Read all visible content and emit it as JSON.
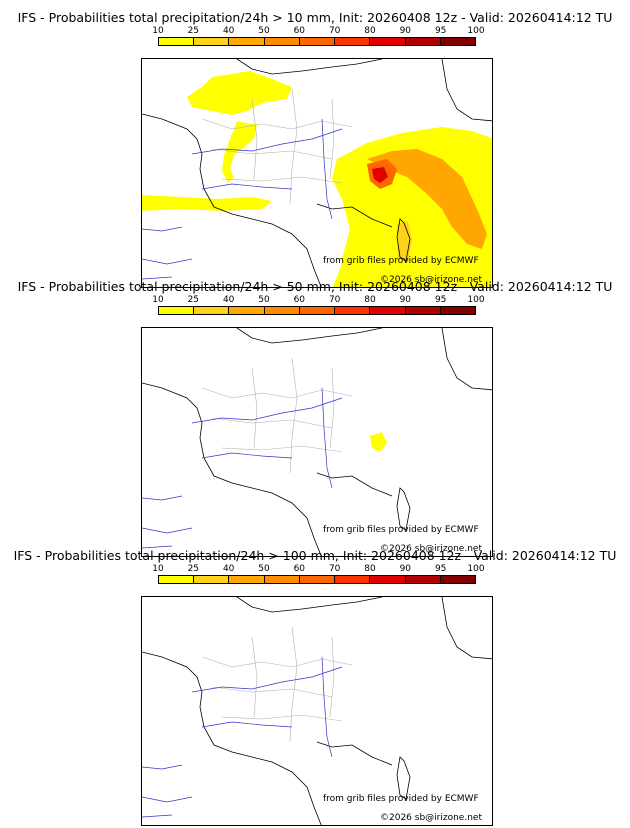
{
  "panels": [
    {
      "title": "IFS - Probabilities total precipitation/24h > 10 mm, Init: 20260408 12z - Valid: 20260414:12 TU",
      "threshold_mm": 10,
      "coverage": "wide"
    },
    {
      "title": "IFS - Probabilities total precipitation/24h > 50 mm, Init: 20260408 12z - Valid: 20260414:12 TU",
      "threshold_mm": 50,
      "coverage": "small"
    },
    {
      "title": "IFS - Probabilities total precipitation/24h > 100 mm, Init: 20260408 12z - Valid: 20260414:12 TU",
      "threshold_mm": 100,
      "coverage": "none"
    }
  ],
  "scale": {
    "labels": [
      "10",
      "25",
      "40",
      "50",
      "60",
      "70",
      "80",
      "90",
      "95",
      "100"
    ],
    "colors": [
      "#ffff00",
      "#ffd21a",
      "#ffa600",
      "#ff8c00",
      "#ff6600",
      "#ff3300",
      "#e00000",
      "#b00000",
      "#800000"
    ]
  },
  "credits": {
    "source": "from grib files provided by ECMWF",
    "copyright": "©2026 sb@irizone.net"
  }
}
